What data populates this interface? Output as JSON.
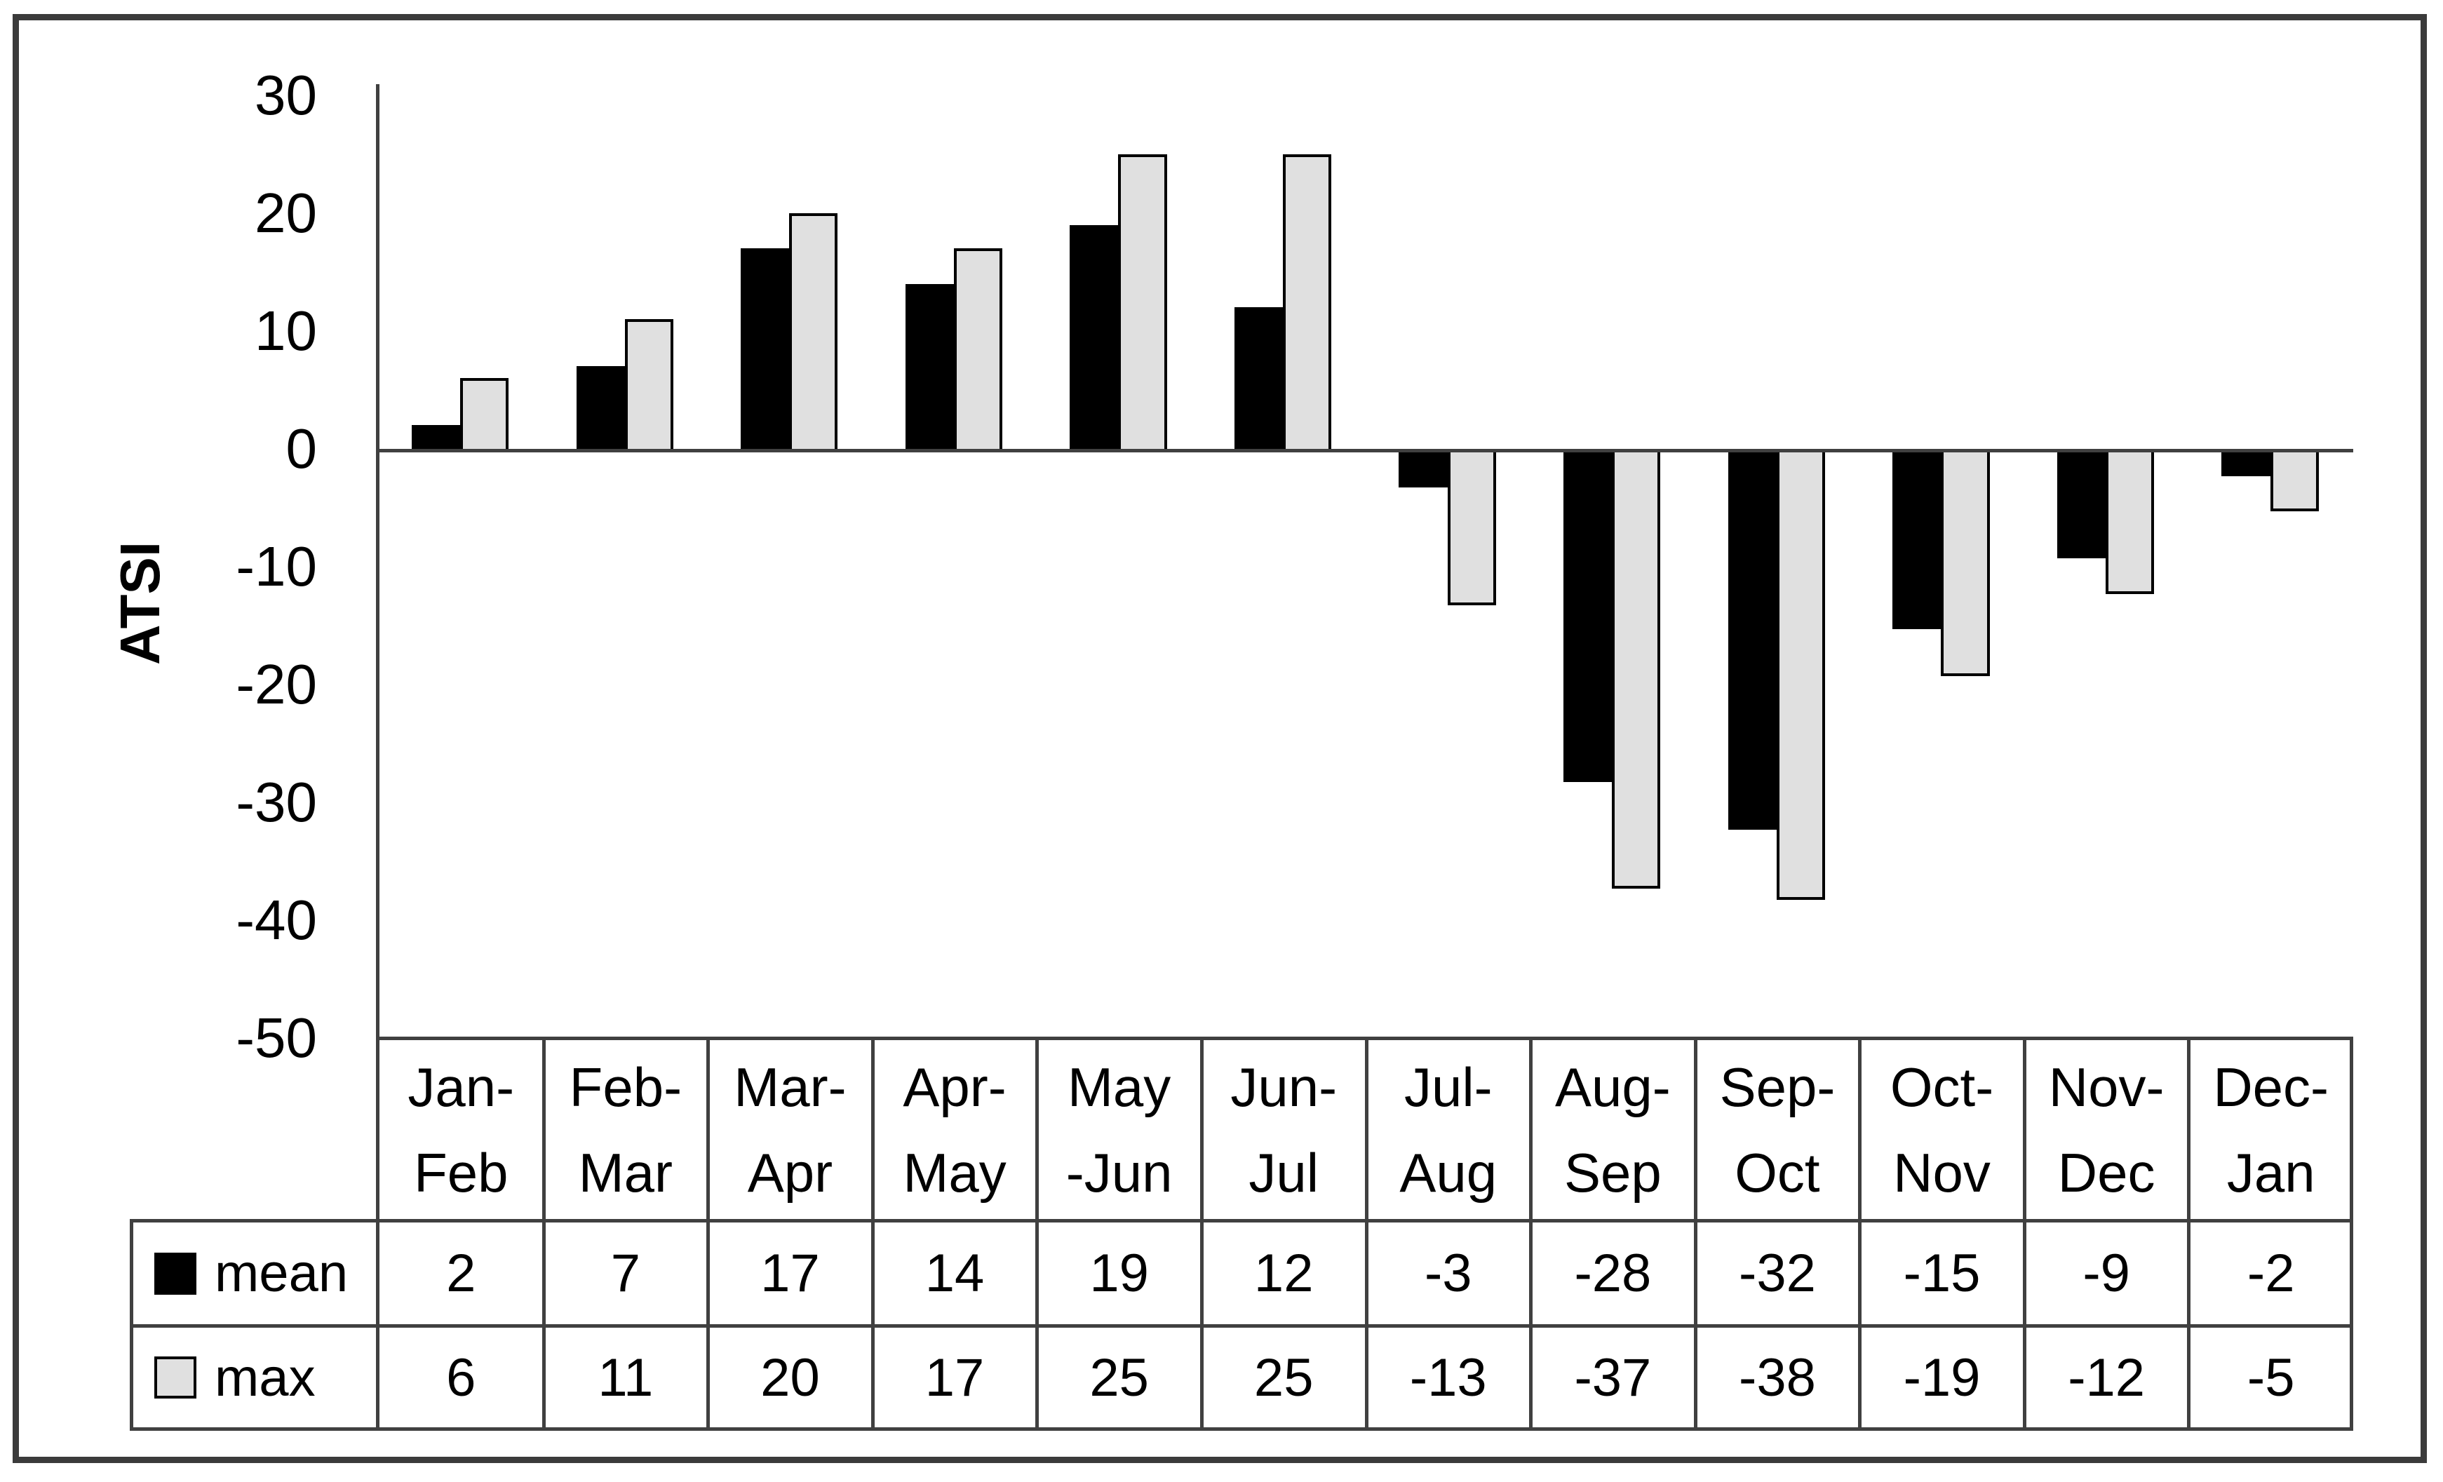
{
  "colors": {
    "mean_bar": "#000000",
    "max_bar_fill": "#e0e0e0",
    "max_bar_border": "#000000",
    "axis_line": "#404040",
    "outer_frame": "#3b3b3b",
    "background": "#ffffff"
  },
  "chart_data": {
    "type": "bar",
    "title": "",
    "xlabel": "",
    "ylabel": "ATSI",
    "ylim": [
      -50,
      30
    ],
    "grid": false,
    "legend_position": "table-left",
    "y_ticks": [
      30,
      20,
      10,
      0,
      -10,
      -20,
      -30,
      -40,
      -50
    ],
    "categories": [
      "Jan-Feb",
      "Feb-Mar",
      "Mar-Apr",
      "Apr-May",
      "May-Jun",
      "Jun-Jul",
      "Jul-Aug",
      "Aug-Sep",
      "Sep-Oct",
      "Oct-Nov",
      "Nov-Dec",
      "Dec-Jan"
    ],
    "categories_lines": [
      [
        "Jan-",
        "Feb"
      ],
      [
        "Feb-",
        "Mar"
      ],
      [
        "Mar-",
        "Apr"
      ],
      [
        "Apr-",
        "May"
      ],
      [
        "May",
        "-Jun"
      ],
      [
        "Jun-",
        "Jul"
      ],
      [
        "Jul-",
        "Aug"
      ],
      [
        "Aug-",
        "Sep"
      ],
      [
        "Sep-",
        "Oct"
      ],
      [
        "Oct-",
        "Nov"
      ],
      [
        "Nov-",
        "Dec"
      ],
      [
        "Dec-",
        "Jan"
      ]
    ],
    "series": [
      {
        "name": "mean",
        "values": [
          2,
          7,
          17,
          14,
          19,
          12,
          -3,
          -28,
          -32,
          -15,
          -9,
          -2
        ]
      },
      {
        "name": "max",
        "values": [
          6,
          11,
          20,
          17,
          25,
          25,
          -13,
          -37,
          -38,
          -19,
          -12,
          -5
        ]
      }
    ]
  }
}
